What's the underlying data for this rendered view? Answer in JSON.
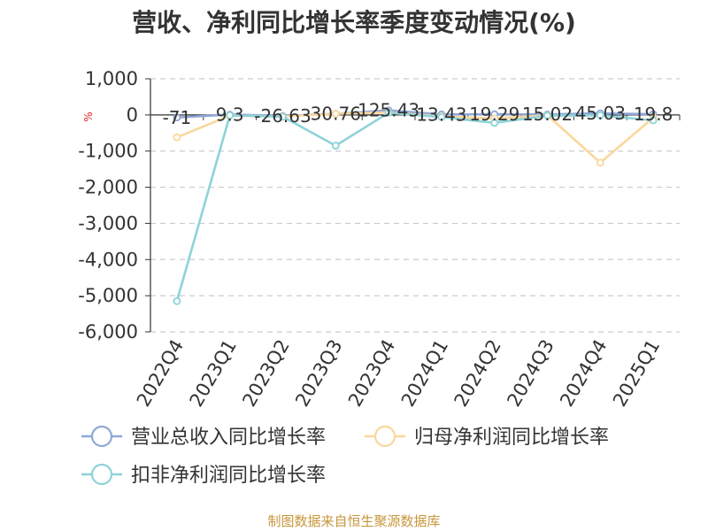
{
  "title": "营收、净利同比增长率季度变动情况(%)",
  "source": "制图数据来自恒生聚源数据库",
  "colors": {
    "revenue": "#8fa8d8",
    "netprofit": "#fad79a",
    "deducted": "#8dd3d8",
    "grid": "#cccccc",
    "axis": "#333333",
    "unit": "#e02020"
  },
  "chart_data": {
    "type": "line",
    "y_unit": "%",
    "categories": [
      "2022Q4",
      "2023Q1",
      "2023Q2",
      "2023Q3",
      "2023Q4",
      "2024Q1",
      "2024Q2",
      "2024Q3",
      "2024Q4",
      "2025Q1"
    ],
    "ylim": [
      -6000,
      1000
    ],
    "yticks": [
      1000,
      0,
      -1000,
      -2000,
      -3000,
      -4000,
      -5000,
      -6000
    ],
    "ytick_labels": [
      "1,000",
      "0",
      "-1,000",
      "-2,000",
      "-3,000",
      "-4,000",
      "-5,000",
      "-6,000"
    ],
    "grid": true,
    "legend_position": "bottom",
    "series": [
      {
        "name": "营业总收入同比增长率",
        "color_key": "revenue",
        "values": [
          -71,
          9.3,
          -26.63,
          30.76,
          125.43,
          13.43,
          19.29,
          15.02,
          45.03,
          19.8
        ],
        "labels": [
          "-71",
          "9.3",
          "-26.63",
          "30.76",
          "125.43",
          "13.43",
          "19.29",
          "15.02",
          "45.03",
          "19.8"
        ]
      },
      {
        "name": "归母净利润同比增长率",
        "color_key": "netprofit",
        "values": [
          -620,
          -20,
          -40,
          30,
          70,
          -40,
          -100,
          -10,
          -1320,
          -80
        ]
      },
      {
        "name": "扣非净利润同比增长率",
        "color_key": "deducted",
        "values": [
          -5150,
          -10,
          -50,
          -850,
          60,
          -60,
          -220,
          -20,
          -10,
          -150
        ]
      }
    ]
  }
}
